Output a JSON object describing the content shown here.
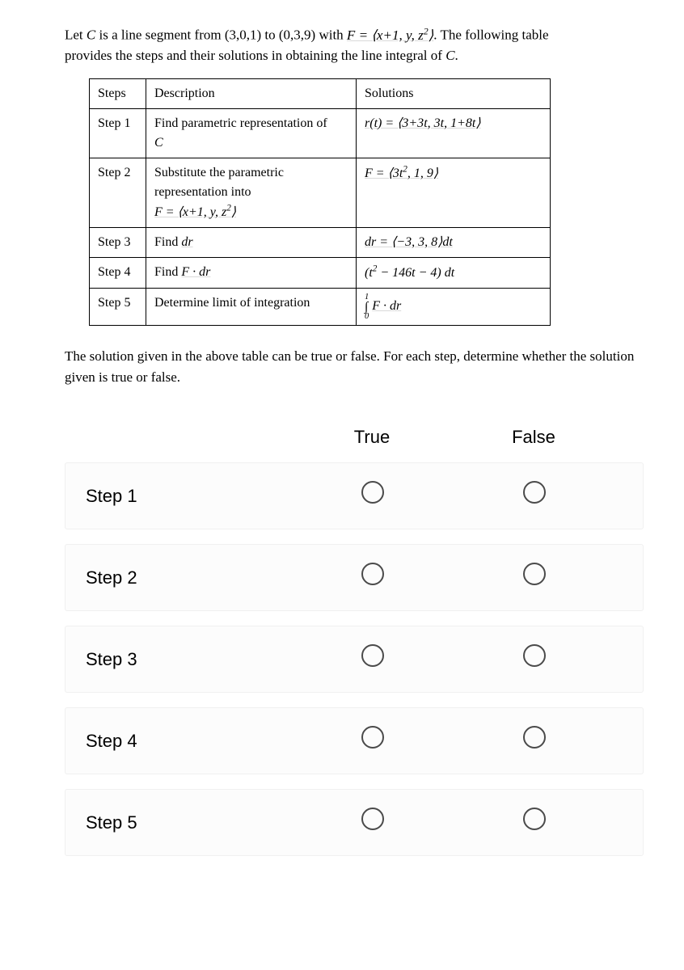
{
  "intro_line1_pre": "Let ",
  "intro_C": "C",
  "intro_line1_mid": " is a line segment from (3,0,1) to (0,3,9) with ",
  "intro_F_eq": "F = ⟨x+1, y, z²⟩",
  "intro_line1_post": ". The following table",
  "intro_line2": "provides the steps and their solutions in obtaining the line integral of ",
  "intro_C2": "C",
  "intro_period": ".",
  "table": {
    "headers": {
      "steps": "Steps",
      "description": "Description",
      "solutions": "Solutions"
    },
    "rows": [
      {
        "step": "Step 1",
        "desc_line1": "Find parametric representation of",
        "desc_line2": "C",
        "sol": "r(t) = ⟨3+3t, 3t, 1+8t⟩"
      },
      {
        "step": "Step 2",
        "desc_line1": "Substitute the parametric",
        "desc_line2": "representation into",
        "desc_line3": "F = ⟨x+1, y, z²⟩",
        "sol": "F = ⟨3t², 1, 9⟩"
      },
      {
        "step": "Step 3",
        "desc_line1": "Find ",
        "desc_math": "dr",
        "sol": "dr = ⟨−3, 3, 8⟩dt"
      },
      {
        "step": "Step 4",
        "desc_line1": "Find ",
        "desc_math": "F · dr",
        "sol": "(t² − 146t − 4) dt"
      },
      {
        "step": "Step 5",
        "desc_line1": "Determine limit of integration",
        "sol_upper": "1",
        "sol_lower": "0",
        "sol_body": "F · dr"
      }
    ]
  },
  "followup": "The solution given in the above table can be true or false. For each step, determine whether the solution given is true or false.",
  "tf": {
    "true_label": "True",
    "false_label": "False",
    "steps": [
      "Step 1",
      "Step 2",
      "Step 3",
      "Step 4",
      "Step 5"
    ]
  },
  "colors": {
    "background": "#ffffff",
    "text": "#000000",
    "row_bg": "#fcfcfc",
    "row_border": "#f0f0f0",
    "radio_border": "#4a4a4a"
  }
}
